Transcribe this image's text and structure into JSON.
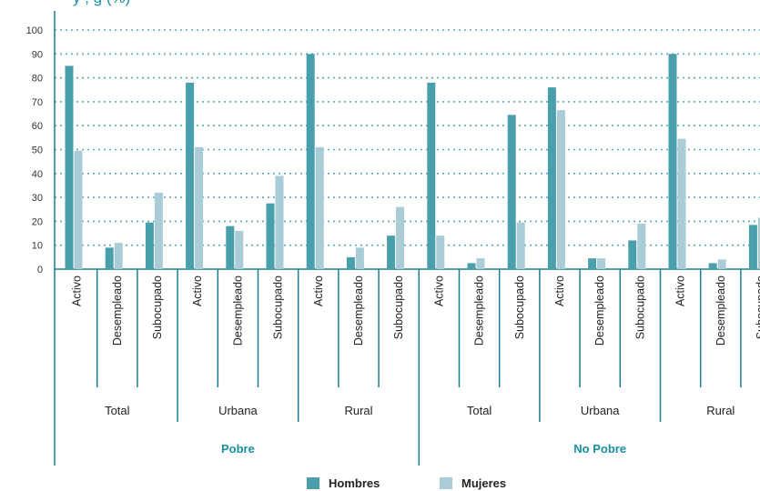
{
  "title": "y , g (%)",
  "chart_data": {
    "type": "bar",
    "title": "y , g (%)",
    "categories": [
      "Activo",
      "Desempleado",
      "Subocupado",
      "Activo",
      "Desempleado",
      "Subocupado",
      "Activo",
      "Desempleado",
      "Subocupado",
      "Activo",
      "Desempleado",
      "Subocupado",
      "Activo",
      "Desempleado",
      "Subocupado",
      "Activo",
      "Desempleado",
      "Subocupado"
    ],
    "groups": [
      {
        "label": "Total",
        "parent": "Pobre"
      },
      {
        "label": "Urbana",
        "parent": "Pobre"
      },
      {
        "label": "Rural",
        "parent": "Pobre"
      },
      {
        "label": "Total",
        "parent": "No Pobre"
      },
      {
        "label": "Urbana",
        "parent": "No Pobre"
      },
      {
        "label": "Rural",
        "parent": "No Pobre"
      }
    ],
    "top_groups": [
      "Pobre",
      "No Pobre"
    ],
    "series": [
      {
        "name": "Hombres",
        "color": "#4a9fad",
        "values": [
          85,
          9,
          19.5,
          78,
          18,
          27.5,
          90,
          5,
          14,
          78,
          2.5,
          64.5,
          76,
          4.5,
          12,
          90,
          2.5,
          18.5
        ]
      },
      {
        "name": "Mujeres",
        "color": "#a9ccd6",
        "values": [
          49.5,
          11,
          32,
          51,
          16,
          39,
          51,
          9,
          26,
          14,
          4.5,
          19.5,
          66.5,
          4.5,
          19,
          54.5,
          4,
          21.5
        ]
      }
    ],
    "yticks": [
      0,
      10,
      20,
      30,
      40,
      50,
      60,
      70,
      80,
      90,
      100
    ],
    "ylim": [
      0,
      100
    ],
    "grid": true,
    "legend_position": "bottom"
  }
}
